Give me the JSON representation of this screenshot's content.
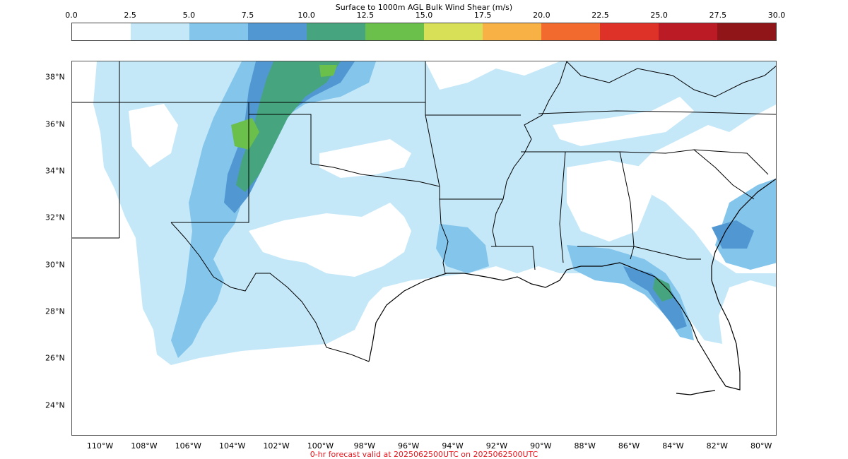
{
  "colorbar": {
    "title": "Surface to 1000m AGL Bulk Wind Shear (m/s)",
    "ticks": [
      "0.0",
      "2.5",
      "5.0",
      "7.5",
      "10.0",
      "12.5",
      "15.0",
      "17.5",
      "20.0",
      "22.5",
      "25.0",
      "27.5",
      "30.0"
    ],
    "colors": [
      "#ffffff",
      "#c5e8f9",
      "#84c5ec",
      "#5198d3",
      "#46a47e",
      "#6bc04b",
      "#d7e057",
      "#f8b145",
      "#f26a2d",
      "#de3127",
      "#bb1b25",
      "#8f1519"
    ]
  },
  "map": {
    "lat_labels": [
      "38°N",
      "36°N",
      "34°N",
      "32°N",
      "30°N",
      "28°N",
      "26°N",
      "24°N"
    ],
    "lon_labels": [
      "110°W",
      "108°W",
      "106°W",
      "104°W",
      "102°W",
      "100°W",
      "98°W",
      "96°W",
      "94°W",
      "92°W",
      "90°W",
      "88°W",
      "86°W",
      "84°W",
      "82°W",
      "80°W"
    ],
    "lon_min": -111.3,
    "lon_max": -79.3,
    "lat_min": 22.7,
    "lat_max": 38.7
  },
  "footer": "0-hr forecast valid at 2025062500UTC on 2025062500UTC"
}
